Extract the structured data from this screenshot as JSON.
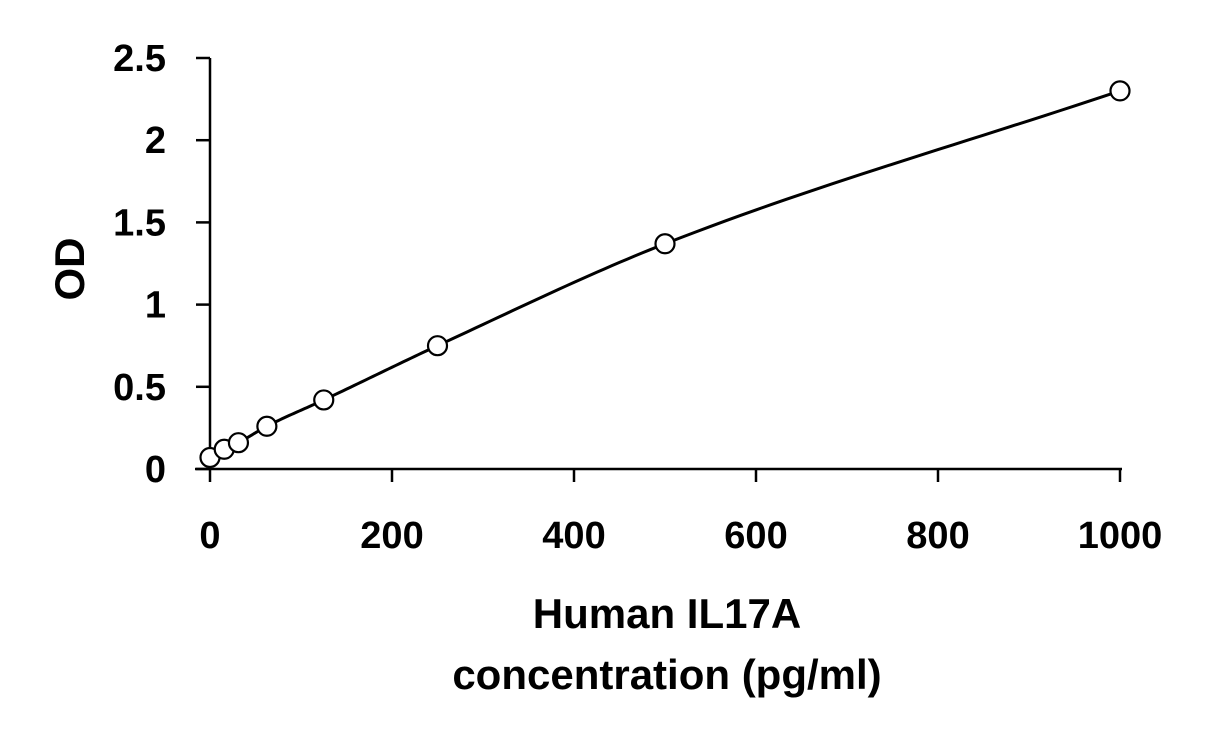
{
  "chart_data": {
    "type": "scatter",
    "title": "",
    "xlabel_lines": [
      "Human IL17A",
      "concentration (pg/ml)"
    ],
    "ylabel": "OD",
    "xlim": [
      0,
      1000
    ],
    "ylim": [
      0,
      2.5
    ],
    "xticks": [
      0,
      200,
      400,
      600,
      800,
      1000
    ],
    "xtick_labels": [
      "0",
      "200",
      "400",
      "600",
      "800",
      "1000"
    ],
    "yticks": [
      0,
      0.5,
      1,
      1.5,
      2,
      2.5
    ],
    "ytick_labels": [
      "0",
      "0.5",
      "1",
      "1.5",
      "2",
      "2.5"
    ],
    "grid": false,
    "legend": false,
    "series": [
      {
        "x": [
          0,
          15.63,
          31.25,
          62.5,
          125,
          250,
          500,
          1000
        ],
        "y": [
          0.07,
          0.12,
          0.16,
          0.26,
          0.42,
          0.75,
          1.37,
          2.3
        ],
        "marker": "open-circle",
        "trendline": "smooth-curve"
      }
    ]
  }
}
